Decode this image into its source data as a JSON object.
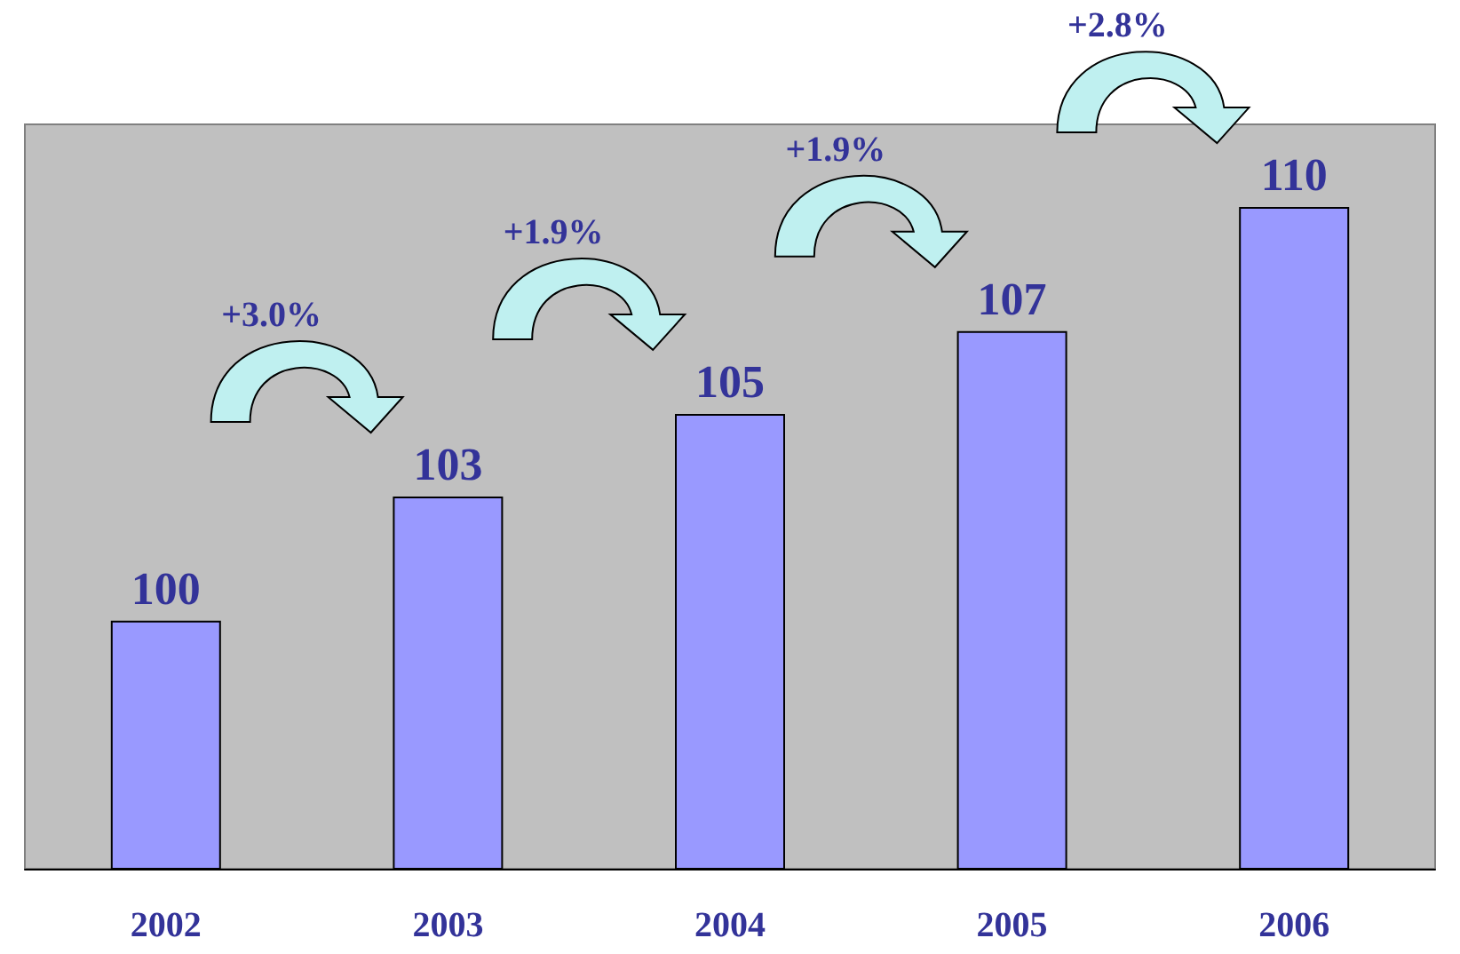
{
  "chart_data": {
    "type": "bar",
    "categories": [
      "2002",
      "2003",
      "2004",
      "2005",
      "2006"
    ],
    "values": [
      100,
      103,
      105,
      107,
      110
    ],
    "color": "#9999ff",
    "ylim": [
      94,
      112
    ],
    "tick_labels": "x",
    "data_labels": true,
    "grid": false,
    "annotations": [
      "+3.0%",
      "+1.9%",
      "+1.9%",
      "+2.8%"
    ]
  }
}
